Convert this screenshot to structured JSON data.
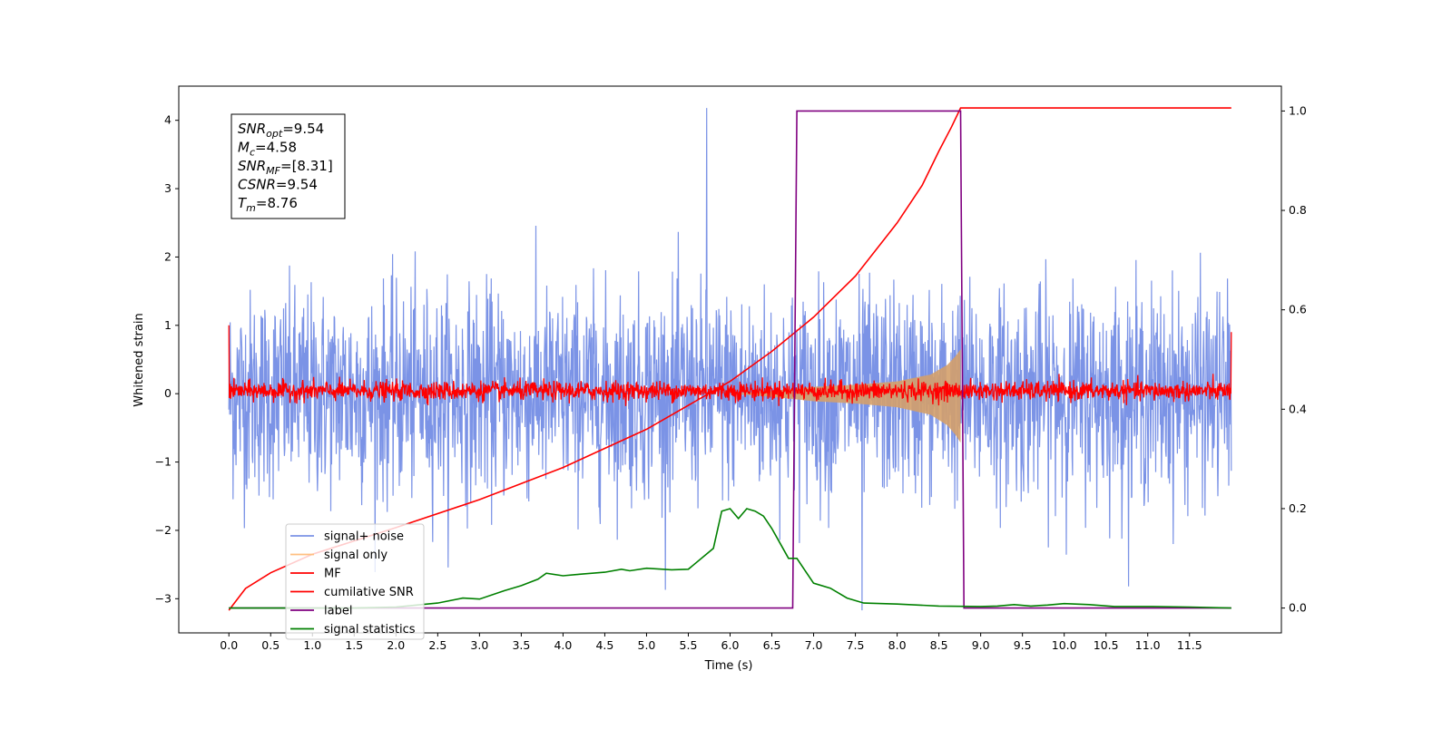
{
  "chart_data": {
    "type": "line",
    "xlabel": "Time (s)",
    "ylabel": "Whitened strain",
    "xlim": [
      -0.6,
      12.6
    ],
    "ylim": [
      -3.5,
      4.5
    ],
    "y2lim": [
      -0.05,
      1.05
    ],
    "x_ticks": [
      "0.0",
      "0.5",
      "1.0",
      "1.5",
      "2.0",
      "2.5",
      "3.0",
      "3.5",
      "4.0",
      "4.5",
      "5.0",
      "5.5",
      "6.0",
      "6.5",
      "7.0",
      "7.5",
      "8.0",
      "8.5",
      "9.0",
      "9.5",
      "10.0",
      "10.5",
      "11.0",
      "11.5"
    ],
    "y_ticks": [
      "4",
      "3",
      "2",
      "1",
      "0",
      "−1",
      "−2",
      "−3"
    ],
    "y2_ticks": [
      "1.0",
      "0.8",
      "0.6",
      "0.4",
      "0.2",
      "0.0"
    ],
    "grid": false,
    "legend_position": "lower-left",
    "annotations": [
      {
        "key": "snr_opt",
        "base": "SNR",
        "sub": "opt",
        "value": "=9.54"
      },
      {
        "key": "mc",
        "base": "M",
        "sub": "c",
        "value": "=4.58"
      },
      {
        "key": "snr_mf",
        "base": "SNR",
        "sub": "MF",
        "value": "=[8.31]"
      },
      {
        "key": "csnr",
        "base": "CSNR",
        "sub": "",
        "value": "=9.54"
      },
      {
        "key": "tm",
        "base": "T",
        "sub": "m",
        "value": "=8.76"
      }
    ],
    "series": [
      {
        "name": "signal+ noise",
        "axis": "left",
        "color": "#7b93e6",
        "kind": "noise",
        "x_range": [
          0,
          12
        ],
        "typical_range": [
          -1.5,
          1.5
        ],
        "max_peak": 4.18,
        "peak_at": 5.72,
        "min_peak": -3.17,
        "min_at": 7.58
      },
      {
        "name": "signal only",
        "axis": "left",
        "color": "#d4a06a",
        "kind": "chirp-envelope",
        "x_range": [
          6.0,
          8.76
        ],
        "envelope": [
          [
            6.0,
            0.0
          ],
          [
            6.5,
            0.04
          ],
          [
            7.0,
            0.1
          ],
          [
            7.5,
            0.13
          ],
          [
            8.0,
            0.18
          ],
          [
            8.4,
            0.28
          ],
          [
            8.6,
            0.42
          ],
          [
            8.7,
            0.55
          ],
          [
            8.76,
            0.65
          ]
        ]
      },
      {
        "name": "MF",
        "axis": "left",
        "color": "#ff0000",
        "kind": "noise",
        "x_range": [
          0,
          12
        ],
        "typical_range": [
          -0.15,
          0.25
        ],
        "edge_values": [
          1.0,
          0.9
        ]
      },
      {
        "name": "cumilative SNR",
        "axis": "left",
        "color": "#ff0000",
        "x": [
          0.0,
          0.2,
          0.5,
          1.0,
          2.0,
          3.0,
          4.0,
          5.0,
          6.0,
          6.5,
          7.0,
          7.5,
          8.0,
          8.3,
          8.5,
          8.65,
          8.76,
          12.0
        ],
        "values": [
          -3.17,
          -2.85,
          -2.62,
          -2.35,
          -1.96,
          -1.55,
          -1.08,
          -0.52,
          0.18,
          0.62,
          1.12,
          1.72,
          2.5,
          3.05,
          3.55,
          3.9,
          4.18,
          4.18
        ]
      },
      {
        "name": "label",
        "axis": "right",
        "color": "#800080",
        "x": [
          0.0,
          6.75,
          6.8,
          8.76,
          8.8,
          12.0
        ],
        "values": [
          0.0,
          0.0,
          1.0,
          1.0,
          0.0,
          0.0
        ]
      },
      {
        "name": "signal statistics",
        "axis": "right",
        "color": "#008000",
        "x": [
          0.0,
          1.5,
          2.0,
          2.5,
          2.8,
          3.0,
          3.3,
          3.5,
          3.7,
          3.8,
          4.0,
          4.2,
          4.5,
          4.7,
          4.8,
          5.0,
          5.3,
          5.5,
          5.8,
          5.9,
          6.0,
          6.1,
          6.2,
          6.3,
          6.4,
          6.5,
          6.6,
          6.7,
          6.8,
          7.0,
          7.2,
          7.4,
          7.6,
          8.0,
          8.5,
          9.0,
          9.2,
          9.4,
          9.6,
          9.8,
          10.0,
          10.3,
          10.6,
          11.0,
          11.5,
          12.0
        ],
        "values": [
          0.0,
          0.0,
          0.002,
          0.01,
          0.02,
          0.018,
          0.035,
          0.045,
          0.058,
          0.07,
          0.065,
          0.068,
          0.072,
          0.078,
          0.075,
          0.08,
          0.077,
          0.078,
          0.12,
          0.195,
          0.2,
          0.18,
          0.2,
          0.195,
          0.185,
          0.16,
          0.13,
          0.1,
          0.1,
          0.05,
          0.04,
          0.02,
          0.01,
          0.008,
          0.004,
          0.003,
          0.004,
          0.007,
          0.004,
          0.006,
          0.009,
          0.007,
          0.003,
          0.003,
          0.002,
          0.0
        ]
      }
    ]
  }
}
